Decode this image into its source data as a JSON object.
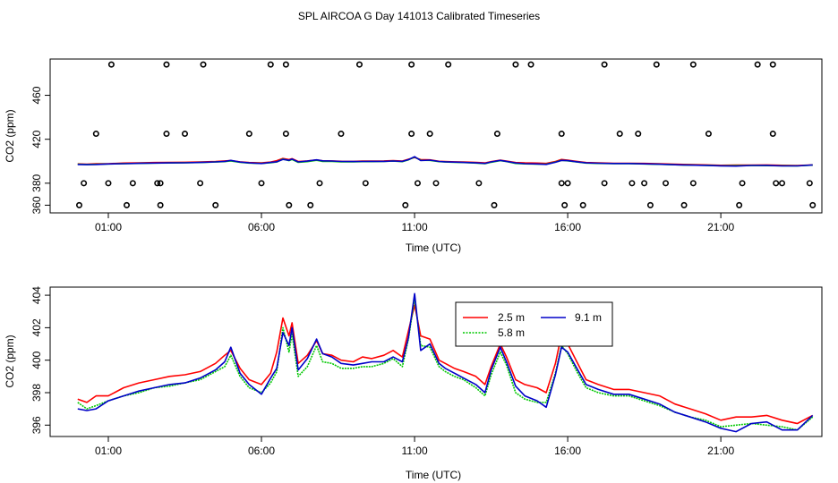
{
  "title": "SPL AIRCOA G  Day 141013  Calibrated Timeseries",
  "colors": {
    "s25": "#ff0000",
    "s58": "#00c800",
    "s91": "#0000c8",
    "axis": "#000000"
  },
  "chart_data": [
    {
      "type": "scatter",
      "id": "top",
      "xlabel": "Time (UTC)",
      "ylabel": "CO2 (ppm)",
      "xlim": [
        -0.9,
        24.3
      ],
      "ylim": [
        353,
        493
      ],
      "xticks": [
        1,
        6,
        11,
        16,
        21
      ],
      "xtick_labels": [
        "01:00",
        "06:00",
        "11:00",
        "16:00",
        "21:00"
      ],
      "yticks": [
        360,
        380,
        420,
        460
      ],
      "ytick_labels": [
        "360",
        "380",
        "420",
        "460"
      ],
      "points": [
        {
          "x": 1.1,
          "y": 488
        },
        {
          "x": 2.9,
          "y": 488
        },
        {
          "x": 4.1,
          "y": 488
        },
        {
          "x": 6.3,
          "y": 488
        },
        {
          "x": 6.8,
          "y": 488
        },
        {
          "x": 9.2,
          "y": 488
        },
        {
          "x": 10.9,
          "y": 488
        },
        {
          "x": 12.1,
          "y": 488
        },
        {
          "x": 14.3,
          "y": 488
        },
        {
          "x": 14.8,
          "y": 488
        },
        {
          "x": 17.2,
          "y": 488
        },
        {
          "x": 18.9,
          "y": 488
        },
        {
          "x": 20.1,
          "y": 488
        },
        {
          "x": 22.2,
          "y": 488
        },
        {
          "x": 22.7,
          "y": 488
        },
        {
          "x": 0.6,
          "y": 425
        },
        {
          "x": 2.9,
          "y": 425
        },
        {
          "x": 3.5,
          "y": 425
        },
        {
          "x": 5.6,
          "y": 425
        },
        {
          "x": 6.8,
          "y": 425
        },
        {
          "x": 8.6,
          "y": 425
        },
        {
          "x": 10.9,
          "y": 425
        },
        {
          "x": 11.5,
          "y": 425
        },
        {
          "x": 13.7,
          "y": 425
        },
        {
          "x": 15.8,
          "y": 425
        },
        {
          "x": 17.7,
          "y": 425
        },
        {
          "x": 18.3,
          "y": 425
        },
        {
          "x": 20.6,
          "y": 425
        },
        {
          "x": 22.7,
          "y": 425
        },
        {
          "x": 1.0,
          "y": 380
        },
        {
          "x": 1.8,
          "y": 380
        },
        {
          "x": 2.6,
          "y": 380
        },
        {
          "x": 4.0,
          "y": 380
        },
        {
          "x": 7.9,
          "y": 380
        },
        {
          "x": 9.4,
          "y": 380
        },
        {
          "x": 11.1,
          "y": 380
        },
        {
          "x": 13.1,
          "y": 380
        },
        {
          "x": 16.0,
          "y": 380
        },
        {
          "x": 17.2,
          "y": 380
        },
        {
          "x": 18.1,
          "y": 380
        },
        {
          "x": 18.5,
          "y": 380
        },
        {
          "x": 20.1,
          "y": 380
        },
        {
          "x": 21.7,
          "y": 380
        },
        {
          "x": 22.8,
          "y": 380
        },
        {
          "x": 23.9,
          "y": 380
        }
      ],
      "points2": [
        {
          "x": 0.05,
          "y": 360
        },
        {
          "x": 1.6,
          "y": 360
        },
        {
          "x": 2.7,
          "y": 360
        },
        {
          "x": 4.5,
          "y": 360
        },
        {
          "x": 6.9,
          "y": 360
        },
        {
          "x": 7.6,
          "y": 360
        },
        {
          "x": 10.7,
          "y": 360
        },
        {
          "x": 13.6,
          "y": 360
        },
        {
          "x": 15.9,
          "y": 360
        },
        {
          "x": 16.5,
          "y": 360
        },
        {
          "x": 18.7,
          "y": 360
        },
        {
          "x": 19.8,
          "y": 360
        },
        {
          "x": 21.6,
          "y": 360
        },
        {
          "x": 24.0,
          "y": 360
        },
        {
          "x": 0.2,
          "y": 380
        },
        {
          "x": 2.7,
          "y": 380
        },
        {
          "x": 6.0,
          "y": 380
        },
        {
          "x": 11.7,
          "y": 380
        },
        {
          "x": 15.8,
          "y": 380
        },
        {
          "x": 19.2,
          "y": 380
        },
        {
          "x": 23.0,
          "y": 380
        }
      ],
      "note": "Both point lists are plotted as open circles; the flat series line near 395-400 ppm is the same 2.5/5.8/9.1 m data as the lower panel."
    },
    {
      "type": "line",
      "id": "bottom",
      "xlabel": "Time (UTC)",
      "ylabel": "CO2 (ppm)",
      "xlim": [
        -0.9,
        24.3
      ],
      "ylim": [
        395.3,
        404.5
      ],
      "xticks": [
        1,
        6,
        11,
        16,
        21
      ],
      "xtick_labels": [
        "01:00",
        "06:00",
        "11:00",
        "16:00",
        "21:00"
      ],
      "yticks": [
        396,
        398,
        400,
        402,
        404
      ],
      "ytick_labels": [
        "396",
        "398",
        "400",
        "402",
        "404"
      ],
      "legend_position": "top-center",
      "series": [
        {
          "name": "2.5 m",
          "color_key": "s25",
          "x": [
            0,
            0.3,
            0.6,
            1,
            1.5,
            2,
            2.5,
            3,
            3.5,
            4,
            4.5,
            4.8,
            5,
            5.3,
            5.6,
            6,
            6.3,
            6.5,
            6.7,
            6.9,
            7,
            7.2,
            7.5,
            7.8,
            8,
            8.3,
            8.6,
            9,
            9.3,
            9.6,
            10,
            10.3,
            10.6,
            10.8,
            11,
            11.2,
            11.5,
            11.8,
            12,
            12.3,
            12.6,
            13,
            13.3,
            13.5,
            13.8,
            14,
            14.3,
            14.6,
            15,
            15.3,
            15.6,
            15.8,
            16,
            16.3,
            16.6,
            17,
            17.5,
            18,
            18.5,
            19,
            19.5,
            20,
            20.5,
            21,
            21.5,
            22,
            22.5,
            23,
            23.5,
            24
          ],
          "y": [
            397.6,
            397.4,
            397.8,
            397.8,
            398.3,
            398.6,
            398.8,
            399.0,
            399.1,
            399.3,
            399.8,
            400.3,
            400.6,
            399.5,
            398.8,
            398.5,
            399.2,
            400.5,
            402.6,
            401.5,
            402.3,
            399.8,
            400.3,
            401.2,
            400.4,
            400.3,
            400.0,
            399.9,
            400.2,
            400.1,
            400.3,
            400.6,
            400.2,
            401.8,
            403.4,
            401.5,
            401.3,
            400.0,
            399.8,
            399.5,
            399.3,
            399.0,
            398.5,
            399.6,
            401.0,
            400.2,
            398.8,
            398.5,
            398.3,
            398.0,
            399.8,
            401.6,
            401.0,
            399.9,
            398.8,
            398.5,
            398.2,
            398.2,
            398.0,
            397.8,
            397.3,
            397.0,
            396.7,
            396.3,
            396.5,
            396.5,
            396.6,
            396.3,
            396.1,
            396.6
          ]
        },
        {
          "name": "5.8 m",
          "color_key": "s58",
          "x": [
            0,
            0.3,
            0.6,
            1,
            1.5,
            2,
            2.5,
            3,
            3.5,
            4,
            4.5,
            4.8,
            5,
            5.3,
            5.6,
            6,
            6.3,
            6.5,
            6.7,
            6.9,
            7,
            7.2,
            7.5,
            7.8,
            8,
            8.3,
            8.6,
            9,
            9.3,
            9.6,
            10,
            10.3,
            10.6,
            10.8,
            11,
            11.2,
            11.5,
            11.8,
            12,
            12.3,
            12.6,
            13,
            13.3,
            13.5,
            13.8,
            14,
            14.3,
            14.6,
            15,
            15.3,
            15.6,
            15.8,
            16,
            16.3,
            16.6,
            17,
            17.5,
            18,
            18.5,
            19,
            19.5,
            20,
            20.5,
            21,
            21.5,
            22,
            22.5,
            23,
            23.5,
            24
          ],
          "y": [
            397.4,
            397.0,
            397.2,
            397.5,
            397.8,
            398.0,
            398.3,
            398.4,
            398.6,
            398.8,
            399.3,
            399.6,
            400.3,
            399.0,
            398.3,
            398.0,
            398.6,
            399.3,
            402.0,
            400.5,
            401.6,
            399.0,
            399.6,
            400.9,
            399.9,
            399.8,
            399.5,
            399.5,
            399.6,
            399.6,
            399.8,
            400.1,
            399.6,
            401.3,
            403.8,
            400.9,
            400.8,
            399.6,
            399.3,
            399.0,
            398.8,
            398.3,
            397.8,
            399.1,
            400.5,
            399.7,
            398.0,
            397.6,
            397.4,
            397.4,
            399.2,
            400.9,
            400.4,
            399.3,
            398.3,
            398.0,
            397.8,
            397.8,
            397.5,
            397.2,
            396.8,
            396.5,
            396.3,
            395.9,
            396.0,
            396.1,
            396.0,
            395.9,
            395.7,
            396.5
          ]
        },
        {
          "name": "9.1 m",
          "color_key": "s91",
          "x": [
            0,
            0.3,
            0.6,
            1,
            1.5,
            2,
            2.5,
            3,
            3.5,
            4,
            4.5,
            4.8,
            5,
            5.3,
            5.6,
            6,
            6.3,
            6.5,
            6.7,
            6.9,
            7,
            7.2,
            7.5,
            7.8,
            8,
            8.3,
            8.6,
            9,
            9.3,
            9.6,
            10,
            10.3,
            10.6,
            10.8,
            11,
            11.2,
            11.5,
            11.8,
            12,
            12.3,
            12.6,
            13,
            13.3,
            13.5,
            13.8,
            14,
            14.3,
            14.6,
            15,
            15.3,
            15.6,
            15.8,
            16,
            16.3,
            16.6,
            17,
            17.5,
            18,
            18.5,
            19,
            19.5,
            20,
            20.5,
            21,
            21.5,
            22,
            22.5,
            23,
            23.5,
            24
          ],
          "y": [
            397.0,
            396.9,
            397.0,
            397.5,
            397.8,
            398.1,
            398.3,
            398.5,
            398.6,
            398.9,
            399.4,
            399.9,
            400.8,
            399.2,
            398.5,
            397.9,
            398.9,
            399.5,
            401.7,
            400.9,
            402.0,
            399.4,
            400.1,
            401.3,
            400.4,
            400.2,
            399.8,
            399.7,
            399.8,
            399.9,
            399.9,
            400.2,
            399.9,
            401.4,
            404.1,
            400.6,
            401.0,
            399.8,
            399.5,
            399.2,
            398.9,
            398.5,
            398.0,
            399.4,
            400.8,
            399.9,
            398.4,
            397.8,
            397.5,
            397.1,
            399.1,
            400.8,
            400.5,
            399.5,
            398.5,
            398.2,
            397.9,
            397.9,
            397.6,
            397.3,
            396.8,
            396.5,
            396.2,
            395.8,
            395.6,
            396.1,
            396.2,
            395.7,
            395.7,
            396.6
          ]
        }
      ]
    }
  ]
}
